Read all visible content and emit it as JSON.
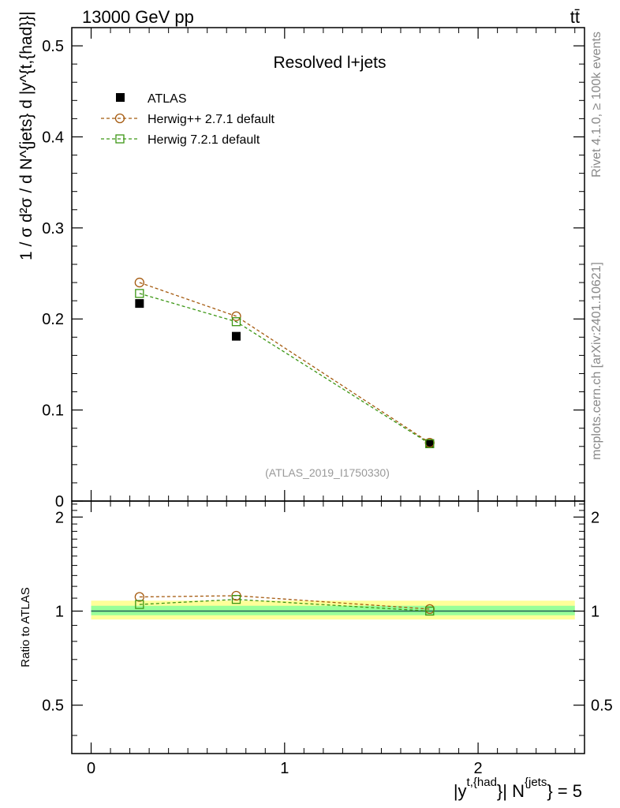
{
  "header": {
    "energy_label": "13000 GeV pp",
    "process_label": "tt̄"
  },
  "side_labels": {
    "rivet": "Rivet 4.1.0, ≥ 100k events",
    "source": "mcplots.cern.ch [arXiv:2401.10621]"
  },
  "colors": {
    "atlas": "#000000",
    "herwigpp": "#a55a0f",
    "herwig7": "#3c9614",
    "band_outer": "#ffff99",
    "band_inner": "#99ff99",
    "ref_line": "#2a6b5a"
  },
  "chart_data": [
    {
      "type": "scatter",
      "title": "Resolved l+jets",
      "watermark": "(ATLAS_2019_I1750330)",
      "ylabel": "1 / σ d²σ / d N^{jets} d |y^{t,{had}}|",
      "xlim": [
        -0.1,
        2.55
      ],
      "ylim": [
        0,
        0.52
      ],
      "yticks": [
        0,
        0.1,
        0.2,
        0.3,
        0.4,
        0.5
      ],
      "ytick_labels": [
        "0",
        "0.1",
        "0.2",
        "0.3",
        "0.4",
        "0.5"
      ],
      "legend_position": "top-left",
      "series": [
        {
          "name": "ATLAS",
          "marker": "filled-square",
          "x": [
            0.25,
            0.75,
            1.75
          ],
          "y": [
            0.217,
            0.181,
            0.063
          ]
        },
        {
          "name": "Herwig++ 2.7.1 default",
          "marker": "open-circle",
          "x": [
            0.25,
            0.75,
            1.75
          ],
          "y": [
            0.24,
            0.203,
            0.064
          ]
        },
        {
          "name": "Herwig 7.2.1 default",
          "marker": "open-square",
          "x": [
            0.25,
            0.75,
            1.75
          ],
          "y": [
            0.228,
            0.197,
            0.063
          ]
        }
      ]
    },
    {
      "type": "line",
      "ylabel": "Ratio to ATLAS",
      "xlabel_parts": {
        "y": "|y",
        "sup1": "t,{had",
        "mid": "}| N",
        "sup2": "{jets",
        "end": "} = 5"
      },
      "xlim": [
        -0.1,
        2.55
      ],
      "ylim": [
        0.35,
        2.25
      ],
      "xticks": [
        0,
        1,
        2
      ],
      "xtick_labels": [
        "0",
        "1",
        "2"
      ],
      "yticks": [
        0.5,
        1,
        2
      ],
      "ytick_labels": [
        "0.5",
        "1",
        "2"
      ],
      "band": {
        "outer": [
          0.94,
          1.08
        ],
        "inner": [
          0.97,
          1.04
        ]
      },
      "series": [
        {
          "name": "Herwig++ 2.7.1 default",
          "x": [
            0.25,
            0.75,
            1.75
          ],
          "y": [
            1.11,
            1.12,
            1.015
          ]
        },
        {
          "name": "Herwig 7.2.1 default",
          "x": [
            0.25,
            0.75,
            1.75
          ],
          "y": [
            1.05,
            1.09,
            1.0
          ]
        }
      ]
    }
  ]
}
